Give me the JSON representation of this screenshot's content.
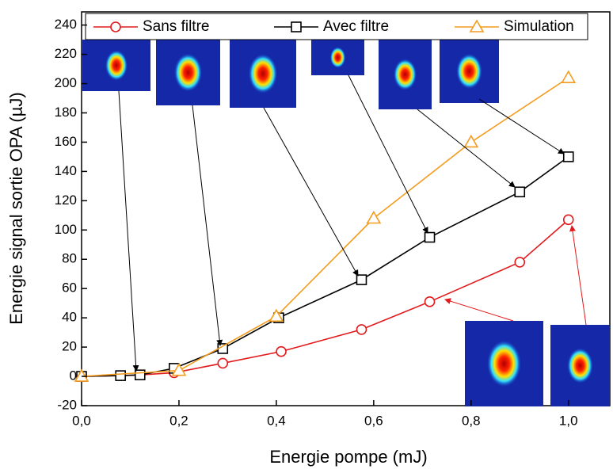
{
  "chart_data": {
    "type": "line",
    "xlabel": "Energie pompe (mJ)",
    "ylabel": "Energie signal sortie OPA (µJ)",
    "xlim": [
      0,
      1.085
    ],
    "ylim": [
      -20,
      249
    ],
    "xticks": [
      {
        "value": 0,
        "label": "0,0"
      },
      {
        "value": 0.2,
        "label": "0,2"
      },
      {
        "value": 0.4,
        "label": "0,4"
      },
      {
        "value": 0.6,
        "label": "0,6"
      },
      {
        "value": 0.8,
        "label": "0,8"
      },
      {
        "value": 1.0,
        "label": "1,0"
      }
    ],
    "yticks": [
      -20,
      0,
      20,
      40,
      60,
      80,
      100,
      120,
      140,
      160,
      180,
      200,
      220,
      240
    ],
    "legend": "top",
    "series": [
      {
        "name": "Sans filtre",
        "color": "#e31a1c",
        "marker": "circle",
        "x": [
          0,
          0.08,
          0.12,
          0.19,
          0.29,
          0.41,
          0.575,
          0.715,
          0.9,
          1.0
        ],
        "values": [
          0,
          0.5,
          1,
          2.5,
          9,
          17,
          32,
          51,
          78,
          107
        ]
      },
      {
        "name": "Avec filtre",
        "color": "#000000",
        "marker": "square",
        "x": [
          0,
          0.08,
          0.12,
          0.19,
          0.29,
          0.405,
          0.575,
          0.715,
          0.9,
          1.0
        ],
        "values": [
          0,
          0.5,
          1,
          5.5,
          19,
          40,
          66,
          95,
          126,
          150
        ]
      },
      {
        "name": "Simulation",
        "color": "#f39c1f",
        "marker": "triangle",
        "x": [
          0,
          0.2,
          0.4,
          0.6,
          0.8,
          1.0
        ],
        "values": [
          0,
          4,
          41,
          108,
          160,
          204
        ]
      }
    ]
  }
}
